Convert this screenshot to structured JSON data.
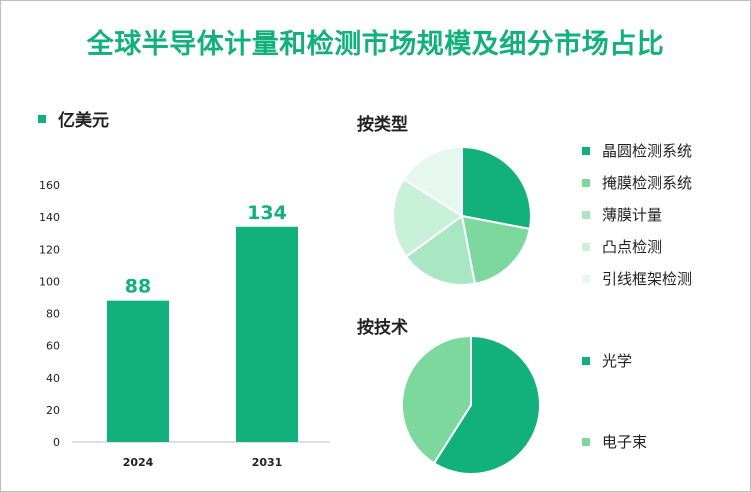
{
  "title": "全球半导体计量和检测市场规模及细分市场占比",
  "colors": {
    "accent": "#12b07a",
    "bar": "#12b07a",
    "axis": "#bfbfbf"
  },
  "bar_chart": {
    "unit_label": "亿美元"
  },
  "pie_type": {
    "title": "按类型",
    "colors": [
      "#12b07a",
      "#7dd89e",
      "#a9e6c4",
      "#c9f0d8",
      "#e6f7ee"
    ],
    "labels": [
      "晶圆检测系统",
      "掩膜检测系统",
      "薄膜计量",
      "凸点检测",
      "引线框架检测"
    ]
  },
  "pie_tech": {
    "title": "按技术",
    "colors": [
      "#12b07a",
      "#7dd89e"
    ],
    "labels": [
      "光学",
      "电子束"
    ]
  },
  "chart_data": [
    {
      "type": "bar",
      "categories": [
        "2024",
        "2031"
      ],
      "values": [
        88,
        134
      ],
      "ylim": [
        0,
        160
      ],
      "yticks": [
        0,
        20,
        40,
        60,
        80,
        100,
        120,
        140,
        160
      ],
      "legend": "亿美元",
      "data_labels": true
    },
    {
      "type": "pie",
      "title": "按类型",
      "labels": [
        "晶圆检测系统",
        "掩膜检测系统",
        "薄膜计量",
        "凸点检测",
        "引线框架检测"
      ],
      "values": [
        28,
        19,
        18,
        19,
        16
      ]
    },
    {
      "type": "pie",
      "title": "按技术",
      "labels": [
        "光学",
        "电子束"
      ],
      "values": [
        59,
        41
      ]
    }
  ]
}
